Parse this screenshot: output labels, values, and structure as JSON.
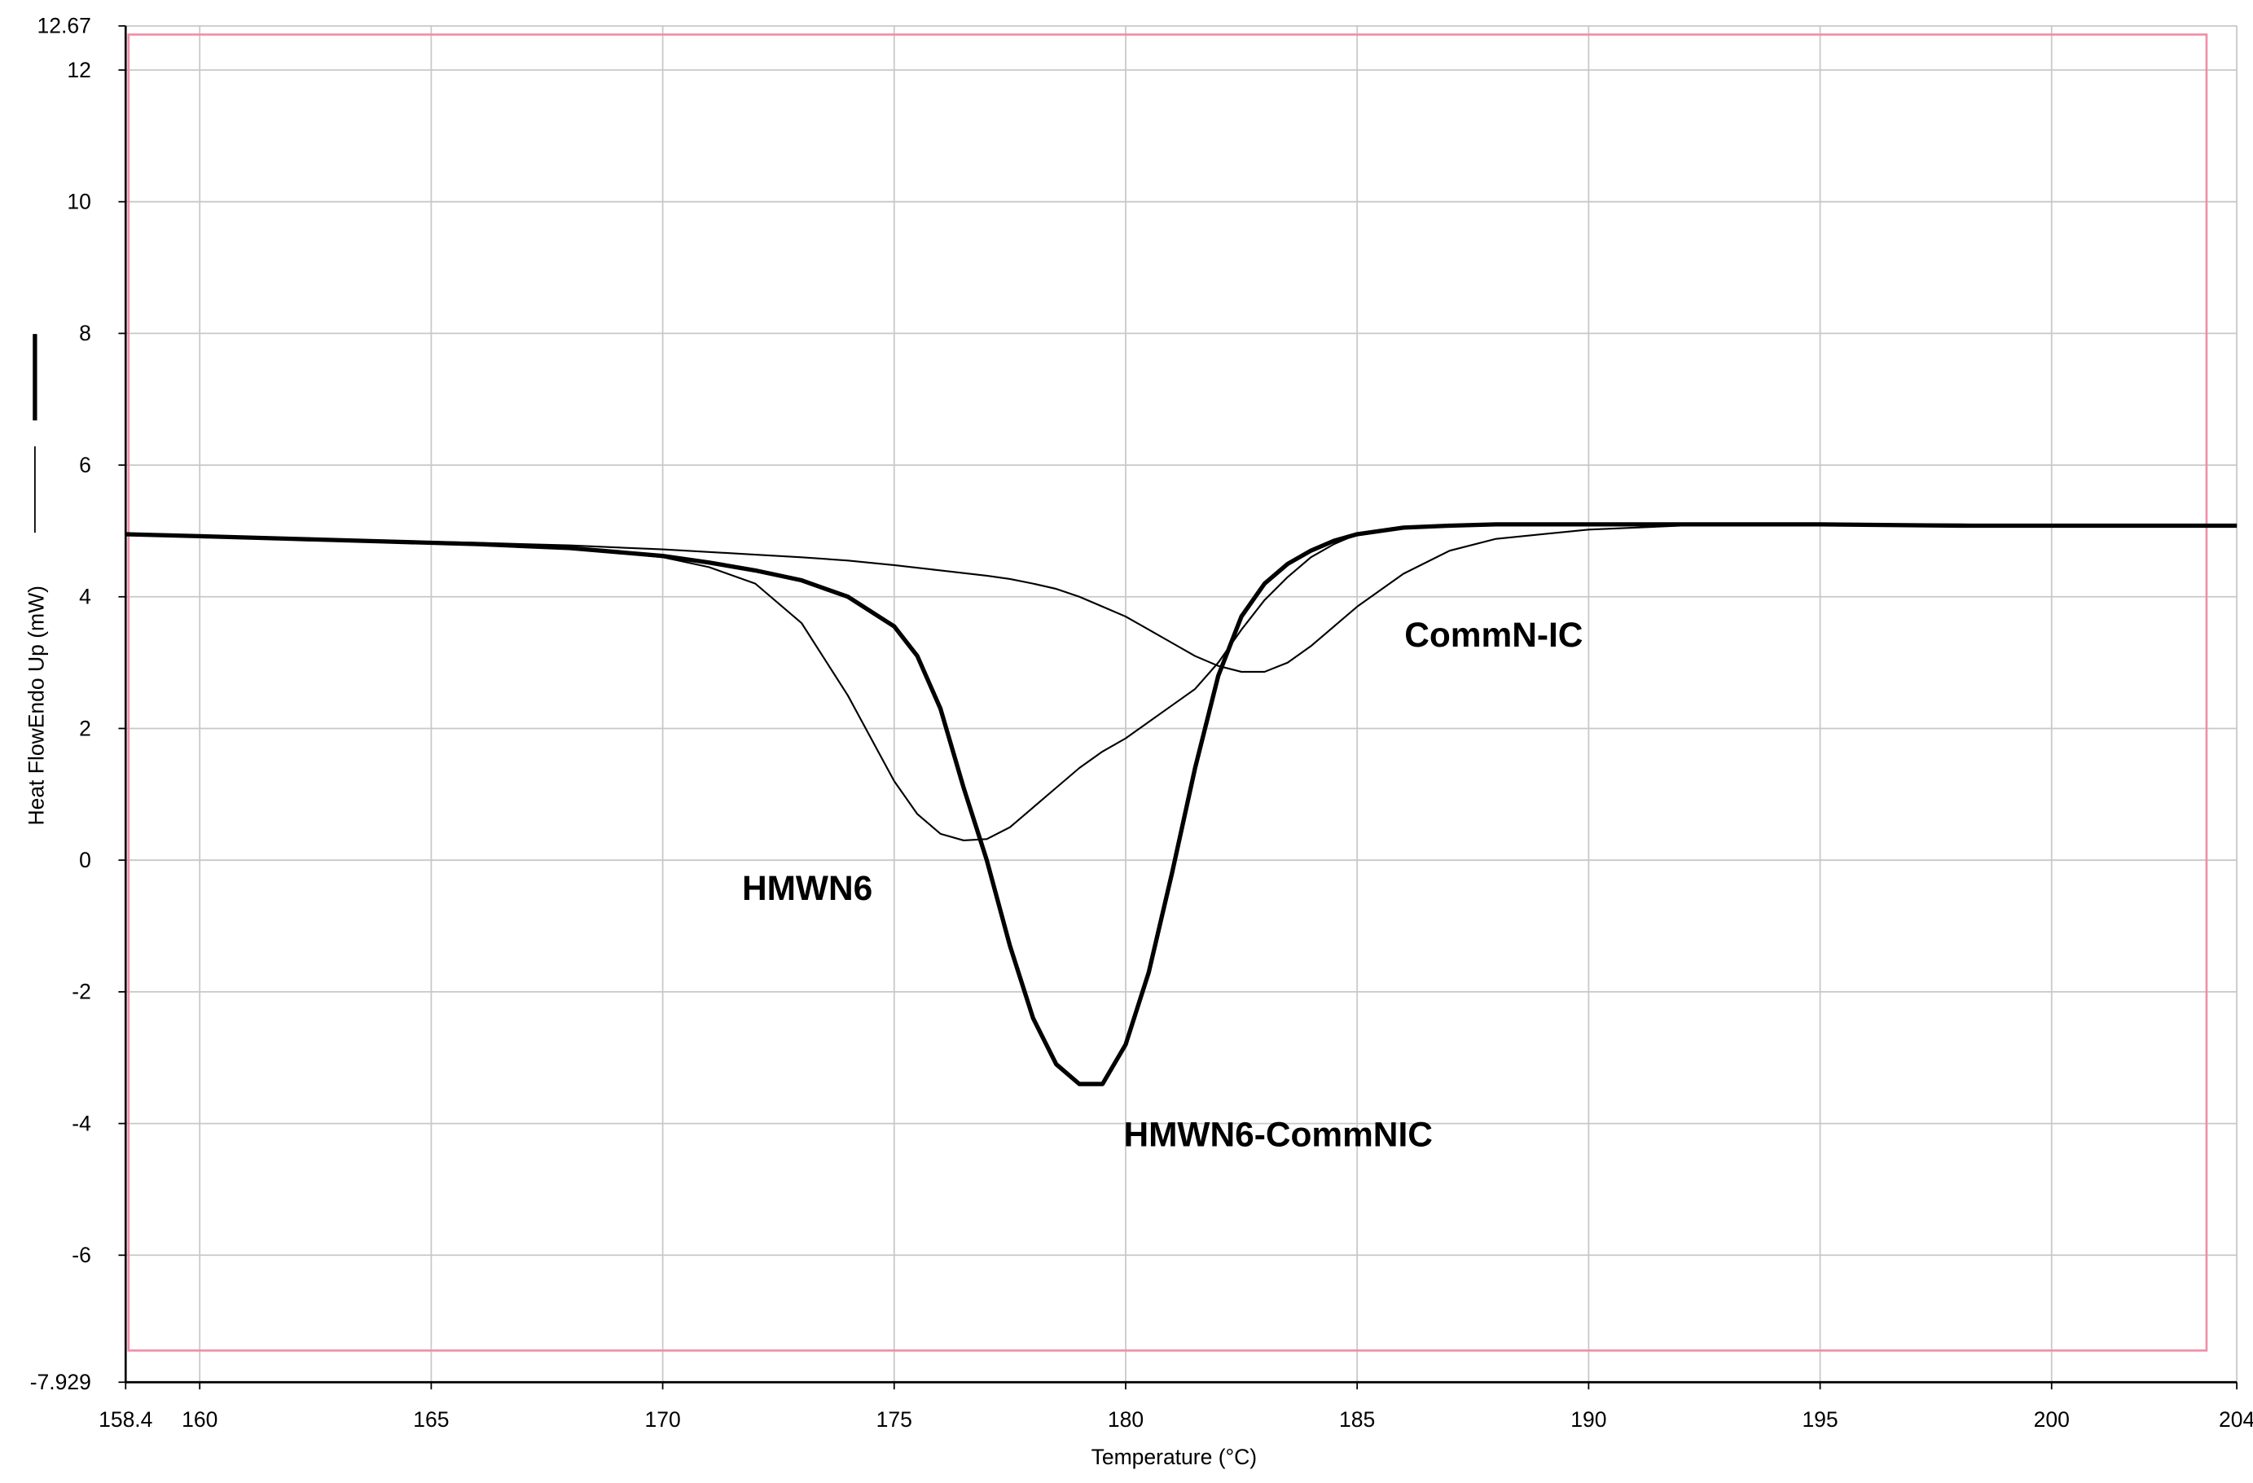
{
  "chart_data": {
    "type": "line",
    "x_label": "Temperature (°C)",
    "y_label": "Heat FlowEndo Up (mW)",
    "x": [
      158.4,
      160,
      162,
      164,
      166,
      168,
      170,
      171,
      172,
      173,
      174,
      175,
      175.5,
      176,
      176.5,
      177,
      177.5,
      178,
      178.5,
      179,
      179.5,
      180,
      180.5,
      181,
      181.5,
      182,
      182.5,
      183,
      183.5,
      184,
      184.5,
      185,
      186,
      187,
      188,
      190,
      192,
      195,
      198,
      200,
      204
    ],
    "series": [
      {
        "name": "HMWN6",
        "color": "#000000",
        "linewidth": 1.2,
        "values": [
          4.95,
          4.92,
          4.88,
          4.84,
          4.8,
          4.74,
          4.6,
          4.45,
          4.2,
          3.6,
          2.5,
          1.2,
          0.7,
          0.4,
          0.3,
          0.32,
          0.5,
          0.8,
          1.1,
          1.4,
          1.65,
          1.85,
          2.1,
          2.35,
          2.6,
          3.0,
          3.5,
          3.95,
          4.3,
          4.6,
          4.8,
          4.95,
          5.05,
          5.08,
          5.1,
          5.1,
          5.1,
          5.1,
          5.08,
          5.08,
          5.08
        ]
      },
      {
        "name": "CommN-IC",
        "color": "#000000",
        "linewidth": 1.2,
        "values": [
          4.95,
          4.92,
          4.88,
          4.85,
          4.82,
          4.78,
          4.72,
          4.68,
          4.64,
          4.6,
          4.55,
          4.48,
          4.44,
          4.4,
          4.36,
          4.32,
          4.27,
          4.2,
          4.12,
          4.0,
          3.85,
          3.7,
          3.5,
          3.3,
          3.1,
          2.95,
          2.86,
          2.86,
          3.0,
          3.25,
          3.55,
          3.85,
          4.35,
          4.7,
          4.88,
          5.02,
          5.08,
          5.1,
          5.1,
          5.08,
          5.08
        ]
      },
      {
        "name": "HMWN6-CommNIC",
        "color": "#000000",
        "linewidth": 3,
        "values": [
          4.95,
          4.92,
          4.88,
          4.84,
          4.8,
          4.74,
          4.62,
          4.52,
          4.4,
          4.25,
          4.0,
          3.55,
          3.1,
          2.3,
          1.1,
          0,
          -1.3,
          -2.4,
          -3.1,
          -3.4,
          -3.4,
          -2.8,
          -1.7,
          -0.2,
          1.4,
          2.8,
          3.7,
          4.2,
          4.5,
          4.7,
          4.85,
          4.95,
          5.05,
          5.08,
          5.1,
          5.1,
          5.1,
          5.1,
          5.08,
          5.08,
          5.08
        ]
      }
    ],
    "xlim": [
      158.4,
      204
    ],
    "ylim": [
      -7.929,
      12.67
    ],
    "xticks": [
      158.4,
      160,
      165,
      170,
      175,
      180,
      185,
      190,
      195,
      200,
      204
    ],
    "yticks": [
      -7.929,
      -6,
      -4,
      -2,
      0,
      2,
      4,
      6,
      8,
      10,
      12,
      12.67
    ],
    "grid": true
  }
}
